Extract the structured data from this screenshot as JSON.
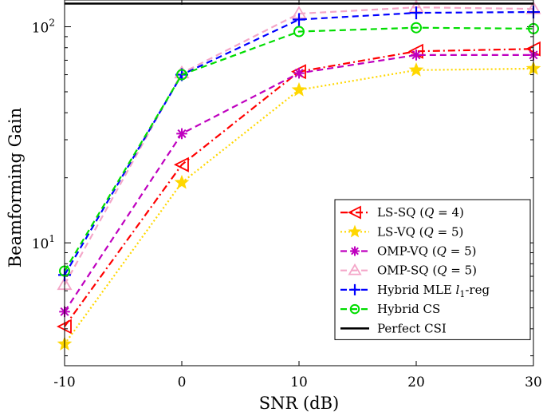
{
  "chart_data": {
    "type": "line",
    "title": "",
    "xlabel": "SNR (dB)",
    "ylabel": "Beamforming Gain",
    "yscale": "log",
    "x": [
      -10,
      0,
      10,
      20,
      30
    ],
    "xlim": [
      -10,
      30
    ],
    "ylim": [
      2.7,
      133
    ],
    "xticks": [
      -10,
      0,
      10,
      20,
      30
    ],
    "xtick_labels": [
      "-10",
      "0",
      "10",
      "20",
      "30"
    ],
    "yticks": [
      10,
      100
    ],
    "ytick_labels": [
      {
        "base": "10",
        "exp": "1"
      },
      {
        "base": "10",
        "exp": "2"
      }
    ],
    "grid": false,
    "legend_position": "lower-right",
    "series": [
      {
        "name": "LS-SQ",
        "param": "Q = 4",
        "values": [
          4.1,
          23,
          62,
          77,
          79
        ],
        "color": "#ff0000",
        "dash": "dashdot",
        "marker": "triangle-left"
      },
      {
        "name": "LS-VQ",
        "param": "Q = 5",
        "values": [
          3.4,
          19,
          51,
          63,
          64
        ],
        "color": "#ffd700",
        "dash": "dotted",
        "marker": "star"
      },
      {
        "name": "OMP-VQ",
        "param": "Q = 5",
        "values": [
          4.8,
          32,
          61,
          74,
          74
        ],
        "color": "#bf00bf",
        "dash": "dashed",
        "marker": "asterisk"
      },
      {
        "name": "OMP-SQ",
        "param": "Q = 5",
        "values": [
          6.4,
          61,
          115,
          123,
          121
        ],
        "color": "#f4a6c8",
        "dash": "dashed",
        "marker": "triangle-up"
      },
      {
        "name": "Hybrid MLE",
        "param": "l1-reg",
        "values": [
          7.1,
          60,
          108,
          116,
          117
        ],
        "color": "#0000ff",
        "dash": "dashed",
        "marker": "plus"
      },
      {
        "name": "Hybrid CS",
        "param": "",
        "values": [
          7.4,
          60,
          95,
          99,
          98
        ],
        "color": "#00dd00",
        "dash": "dashed",
        "marker": "circle"
      },
      {
        "name": "Perfect CSI",
        "param": "",
        "values": [
          128,
          128,
          128,
          128,
          128
        ],
        "color": "#000000",
        "dash": "solid",
        "marker": "none"
      }
    ]
  }
}
